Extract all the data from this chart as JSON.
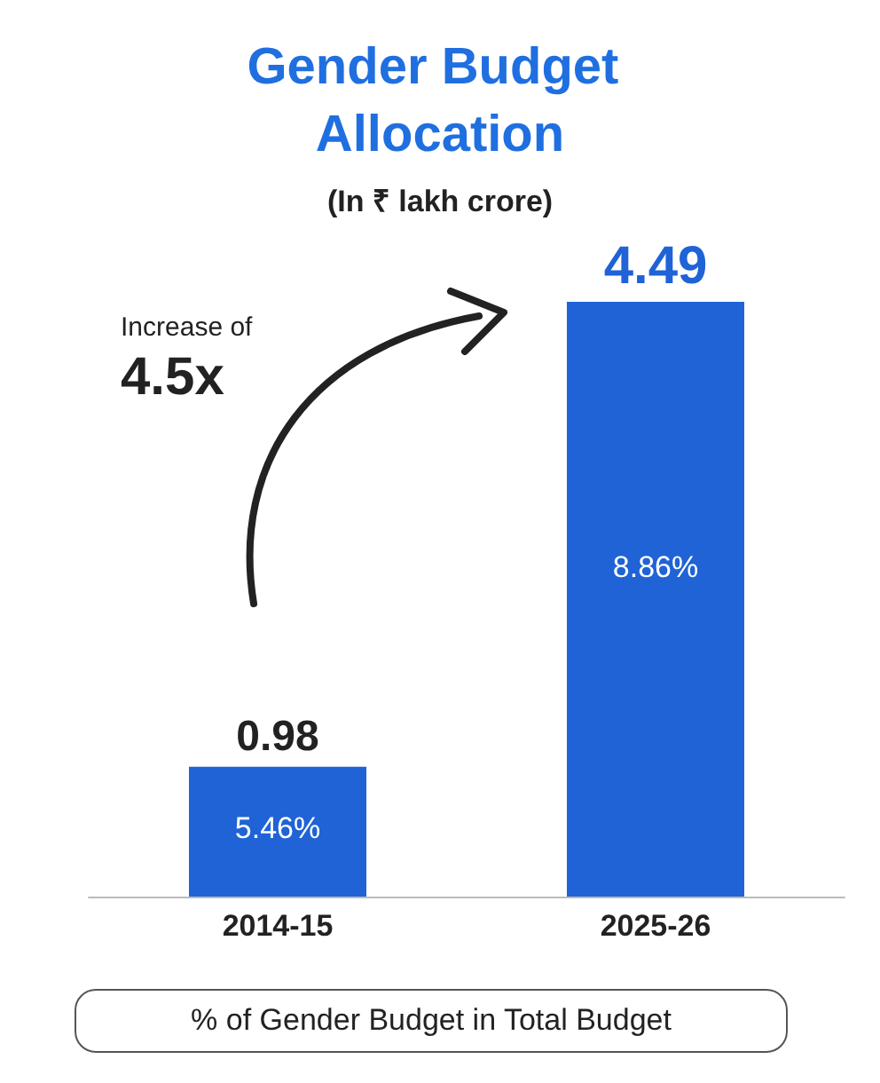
{
  "chart_data": {
    "type": "bar",
    "title": "Gender Budget Allocation",
    "subtitle": "(In ₹ lakh crore)",
    "categories": [
      "2014-15",
      "2025-26"
    ],
    "values": [
      0.98,
      4.49
    ],
    "color": "#1f63d6",
    "data_labels": true,
    "annotations": [
      "Increase of",
      "4.5x",
      "5.46%",
      "8.86%",
      "% of Gender Budget in Total Budget"
    ]
  }
}
